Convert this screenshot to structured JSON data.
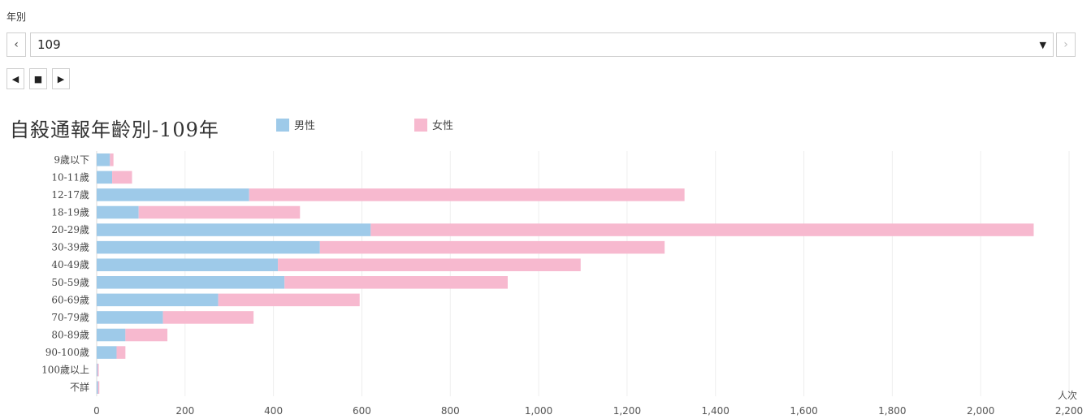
{
  "filter": {
    "label": "年別",
    "selected": "109",
    "prev_icon": "chevron-left",
    "next_icon": "chevron-right",
    "dropdown_icon": "caret-down"
  },
  "playback": {
    "back_icon": "triangle-left",
    "stop_icon": "square",
    "forward_icon": "triangle-right"
  },
  "chart_data": {
    "type": "bar",
    "orientation": "horizontal",
    "stacked": true,
    "title": "自殺通報年齡別-109年",
    "xlabel": "人次",
    "xlim": [
      0,
      2200
    ],
    "xticks": [
      0,
      200,
      400,
      600,
      800,
      1000,
      1200,
      1400,
      1600,
      1800,
      2000,
      2200
    ],
    "xtick_labels": [
      "0",
      "200",
      "400",
      "600",
      "800",
      "1,000",
      "1,200",
      "1,400",
      "1,600",
      "1,800",
      "2,000",
      "2,200"
    ],
    "grid": true,
    "legend_position": "top",
    "categories": [
      "9歲以下",
      "10-11歲",
      "12-17歲",
      "18-19歲",
      "20-29歲",
      "30-39歲",
      "40-49歲",
      "50-59歲",
      "60-69歲",
      "70-79歲",
      "80-89歲",
      "90-100歲",
      "100歲以上",
      "不詳"
    ],
    "series": [
      {
        "name": "男性",
        "color": "#9ecae9",
        "values": [
          30,
          35,
          345,
          95,
          620,
          505,
          410,
          425,
          275,
          150,
          65,
          45,
          2,
          3
        ]
      },
      {
        "name": "女性",
        "color": "#f7b9cf",
        "values": [
          8,
          45,
          985,
          365,
          1500,
          780,
          685,
          505,
          320,
          205,
          95,
          20,
          1,
          3
        ]
      }
    ]
  }
}
